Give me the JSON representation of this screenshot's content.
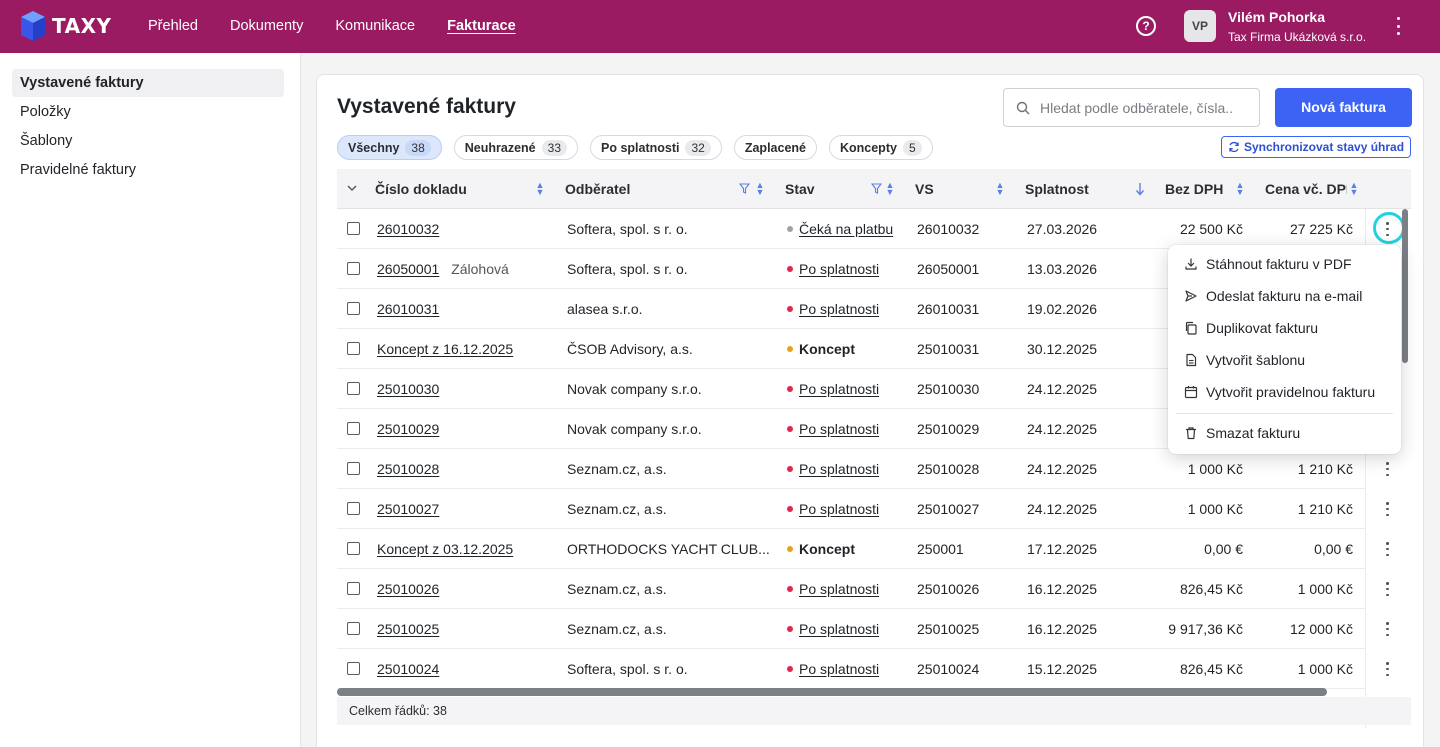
{
  "app": {
    "name": "TAXY",
    "brand_color": "#9b1b62",
    "accent_color": "#3d63f5"
  },
  "nav": [
    {
      "label": "Přehled",
      "active": false
    },
    {
      "label": "Dokumenty",
      "active": false
    },
    {
      "label": "Komunikace",
      "active": false
    },
    {
      "label": "Fakturace",
      "active": true
    }
  ],
  "user": {
    "initials": "VP",
    "name": "Vilém Pohorka",
    "company": "Tax Firma Ukázková s.r.o."
  },
  "sidebar": [
    {
      "label": "Vystavené faktury",
      "active": true
    },
    {
      "label": "Položky",
      "active": false
    },
    {
      "label": "Šablony",
      "active": false
    },
    {
      "label": "Pravidelné faktury",
      "active": false
    }
  ],
  "page": {
    "title": "Vystavené faktury",
    "search_placeholder": "Hledat podle odběratele, čísla..",
    "new_button": "Nová faktura",
    "sync_button": "Synchronizovat stavy úhrad"
  },
  "filters": [
    {
      "label": "Všechny",
      "count": "38",
      "active": true
    },
    {
      "label": "Neuhrazené",
      "count": "33",
      "active": false
    },
    {
      "label": "Po splatnosti",
      "count": "32",
      "active": false
    },
    {
      "label": "Zaplacené",
      "count": "",
      "active": false
    },
    {
      "label": "Koncepty",
      "count": "5",
      "active": false
    }
  ],
  "table": {
    "headers": {
      "number": "Číslo dokladu",
      "customer": "Odběratel",
      "status": "Stav",
      "vs": "VS",
      "due": "Splatnost",
      "net": "Bez DPH",
      "gross": "Cena vč. DPH"
    },
    "rows": [
      {
        "number": "26010032",
        "tag": "",
        "customer": "Softera, spol. s r. o.",
        "status": "Čeká na platbu",
        "status_color": "#a0a2a8",
        "status_link": true,
        "vs": "26010032",
        "due": "27.03.2026",
        "net": "22 500 Kč",
        "gross": "27 225 Kč"
      },
      {
        "number": "26050001",
        "tag": "Zálohová",
        "customer": "Softera, spol. s r. o.",
        "status": "Po splatnosti",
        "status_color": "#e0284a",
        "status_link": true,
        "vs": "26050001",
        "due": "13.03.2026",
        "net": "",
        "gross": ""
      },
      {
        "number": "26010031",
        "tag": "",
        "customer": "alasea s.r.o.",
        "status": "Po splatnosti",
        "status_color": "#e0284a",
        "status_link": true,
        "vs": "26010031",
        "due": "19.02.2026",
        "net": "",
        "gross": ""
      },
      {
        "number": "Koncept z 16.12.2025",
        "tag": "",
        "customer": "ČSOB Advisory, a.s.",
        "status": "Koncept",
        "status_color": "#e6a317",
        "status_link": false,
        "vs": "25010031",
        "due": "30.12.2025",
        "net": "",
        "gross": ""
      },
      {
        "number": "25010030",
        "tag": "",
        "customer": "Novak company s.r.o.",
        "status": "Po splatnosti",
        "status_color": "#e0284a",
        "status_link": true,
        "vs": "25010030",
        "due": "24.12.2025",
        "net": "",
        "gross": ""
      },
      {
        "number": "25010029",
        "tag": "",
        "customer": "Novak company s.r.o.",
        "status": "Po splatnosti",
        "status_color": "#e0284a",
        "status_link": true,
        "vs": "25010029",
        "due": "24.12.2025",
        "net": "",
        "gross": ""
      },
      {
        "number": "25010028",
        "tag": "",
        "customer": "Seznam.cz, a.s.",
        "status": "Po splatnosti",
        "status_color": "#e0284a",
        "status_link": true,
        "vs": "25010028",
        "due": "24.12.2025",
        "net": "1 000 Kč",
        "gross": "1 210 Kč"
      },
      {
        "number": "25010027",
        "tag": "",
        "customer": "Seznam.cz, a.s.",
        "status": "Po splatnosti",
        "status_color": "#e0284a",
        "status_link": true,
        "vs": "25010027",
        "due": "24.12.2025",
        "net": "1 000 Kč",
        "gross": "1 210 Kč"
      },
      {
        "number": "Koncept z 03.12.2025",
        "tag": "",
        "customer": "ORTHODOCKS YACHT CLUB...",
        "status": "Koncept",
        "status_color": "#e6a317",
        "status_link": false,
        "vs": "250001",
        "due": "17.12.2025",
        "net": "0,00 €",
        "gross": "0,00 €"
      },
      {
        "number": "25010026",
        "tag": "",
        "customer": "Seznam.cz, a.s.",
        "status": "Po splatnosti",
        "status_color": "#e0284a",
        "status_link": true,
        "vs": "25010026",
        "due": "16.12.2025",
        "net": "826,45 Kč",
        "gross": "1 000 Kč"
      },
      {
        "number": "25010025",
        "tag": "",
        "customer": "Seznam.cz, a.s.",
        "status": "Po splatnosti",
        "status_color": "#e0284a",
        "status_link": true,
        "vs": "25010025",
        "due": "16.12.2025",
        "net": "9 917,36 Kč",
        "gross": "12 000 Kč"
      },
      {
        "number": "25010024",
        "tag": "",
        "customer": "Softera, spol. s r. o.",
        "status": "Po splatnosti",
        "status_color": "#e0284a",
        "status_link": true,
        "vs": "25010024",
        "due": "15.12.2025",
        "net": "826,45 Kč",
        "gross": "1 000 Kč"
      }
    ],
    "footer": "Celkem řádků: 38"
  },
  "row_menu": [
    {
      "label": "Stáhnout fakturu v PDF",
      "icon": "download-icon"
    },
    {
      "label": "Odeslat fakturu na e-mail",
      "icon": "send-icon"
    },
    {
      "label": "Duplikovat fakturu",
      "icon": "copy-icon"
    },
    {
      "label": "Vytvořit šablonu",
      "icon": "file-icon"
    },
    {
      "label": "Vytvořit pravidelnou fakturu",
      "icon": "calendar-icon"
    },
    {
      "label": "Smazat fakturu",
      "icon": "trash-icon"
    }
  ]
}
